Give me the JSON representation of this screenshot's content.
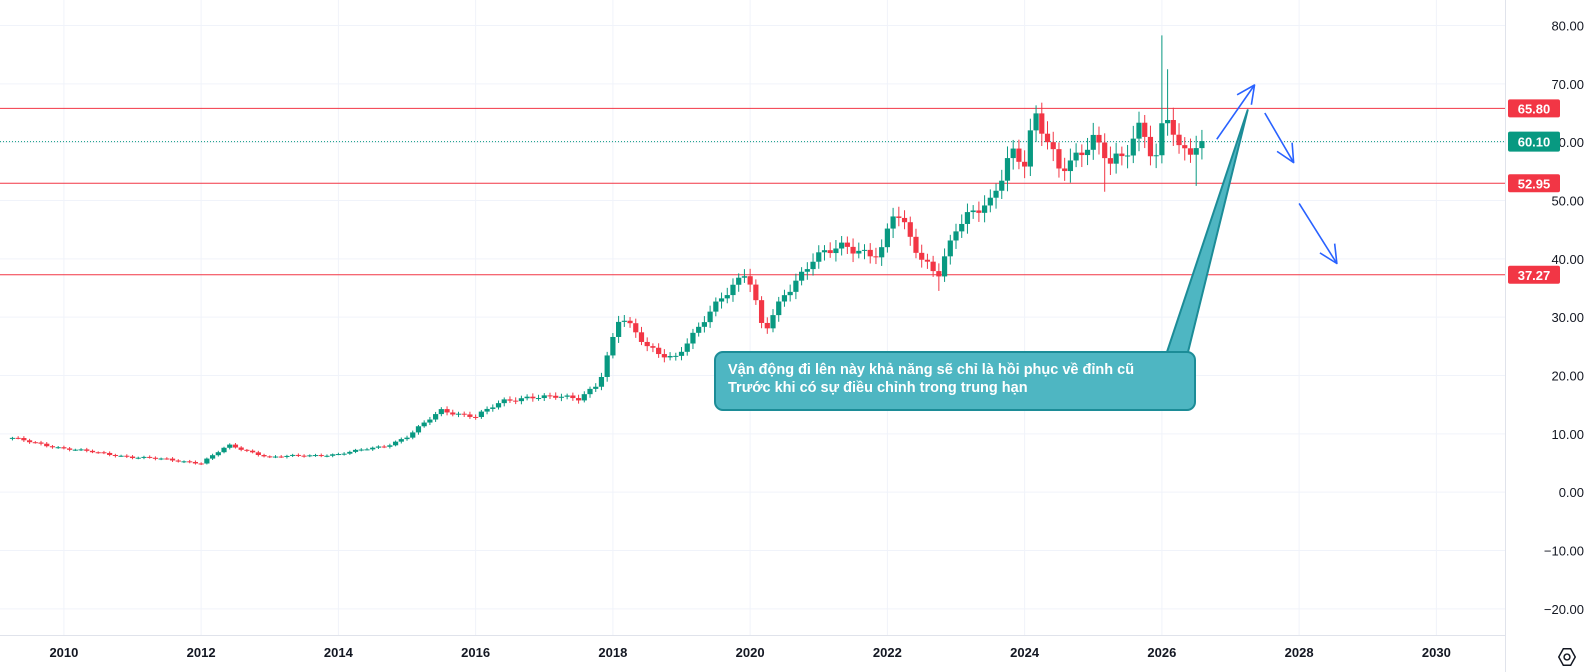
{
  "chart_data": {
    "type": "candlestick",
    "title": "",
    "xlabel": "",
    "ylabel": "",
    "xlim": [
      2009.2,
      2031.0
    ],
    "ylim": [
      -25,
      83
    ],
    "grid": true,
    "x_ticks": [
      "2010",
      "2012",
      "2014",
      "2016",
      "2018",
      "2020",
      "2022",
      "2024",
      "2026",
      "2028",
      "2030"
    ],
    "y_ticks": [
      "80.00",
      "70.00",
      "60.00",
      "50.00",
      "40.00",
      "30.00",
      "20.00",
      "10.00",
      "0.00",
      "−10.00",
      "−20.00"
    ],
    "y_tick_values": [
      80,
      70,
      60,
      50,
      40,
      30,
      20,
      10,
      0,
      -10,
      -20
    ],
    "horizontal_levels": [
      {
        "value": 65.8,
        "label": "65.80",
        "color": "#f23645"
      },
      {
        "value": 52.95,
        "label": "52.95",
        "color": "#f23645"
      },
      {
        "value": 37.27,
        "label": "37.27",
        "color": "#f23645"
      }
    ],
    "last_price": {
      "value": 60.1,
      "label": "60.10",
      "color": "#089981"
    },
    "up_color": "#089981",
    "down_color": "#f23645",
    "anchors": [
      [
        2009.25,
        9.2
      ],
      [
        2010.0,
        7.5
      ],
      [
        2011.0,
        6.0
      ],
      [
        2011.5,
        5.6
      ],
      [
        2012.0,
        5.0
      ],
      [
        2012.4,
        8.0
      ],
      [
        2013.0,
        6.0
      ],
      [
        2014.0,
        6.5
      ],
      [
        2014.7,
        8.0
      ],
      [
        2015.0,
        9.5
      ],
      [
        2015.5,
        14.0
      ],
      [
        2016.0,
        13.0
      ],
      [
        2016.4,
        15.5
      ],
      [
        2016.8,
        16.5
      ],
      [
        2017.5,
        16.0
      ],
      [
        2017.8,
        19.0
      ],
      [
        2018.1,
        30.0
      ],
      [
        2018.5,
        25.0
      ],
      [
        2018.9,
        23.0
      ],
      [
        2019.2,
        27.0
      ],
      [
        2019.6,
        34.0
      ],
      [
        2019.95,
        38.0
      ],
      [
        2020.2,
        27.0
      ],
      [
        2020.5,
        34.0
      ],
      [
        2020.9,
        40.0
      ],
      [
        2021.4,
        42.0
      ],
      [
        2021.9,
        41.0
      ],
      [
        2022.1,
        48.0
      ],
      [
        2022.5,
        40.0
      ],
      [
        2022.75,
        38.0
      ],
      [
        2023.0,
        45.0
      ],
      [
        2023.5,
        50.0
      ],
      [
        2023.8,
        59.0
      ],
      [
        2024.0,
        56.0
      ],
      [
        2024.15,
        64.0
      ],
      [
        2024.5,
        56.0
      ],
      [
        2025.0,
        60.0
      ],
      [
        2025.25,
        56.0
      ],
      [
        2025.45,
        58.0
      ],
      [
        2025.7,
        64.0
      ],
      [
        2025.9,
        56.0
      ],
      [
        2026.05,
        65.0
      ],
      [
        2026.25,
        58.0
      ],
      [
        2026.6,
        60.1
      ]
    ],
    "wicks": [
      {
        "x": 2022.75,
        "low": 34.5
      },
      {
        "x": 2025.2,
        "low": 51.5
      },
      {
        "x": 2026.0,
        "high": 78.3
      },
      {
        "x": 2026.1,
        "high": 72.5
      },
      {
        "x": 2026.5,
        "low": 52.5
      }
    ],
    "arrows": [
      {
        "from": [
          2026.8,
          60.5
        ],
        "to": [
          2027.35,
          69.8
        ]
      },
      {
        "from": [
          2027.5,
          65.0
        ],
        "to": [
          2027.92,
          56.5
        ]
      },
      {
        "from": [
          2028.0,
          49.5
        ],
        "to": [
          2028.55,
          39.2
        ]
      }
    ],
    "callout_target": [
      2027.25,
      65.5
    ]
  },
  "annotation": {
    "line1": "Vận động đi lên này khả năng sẽ chỉ là hồi phục về đỉnh cũ",
    "line2": "Trước khi có sự điều chỉnh trong trung hạn"
  },
  "settings_icon": "gear-icon"
}
